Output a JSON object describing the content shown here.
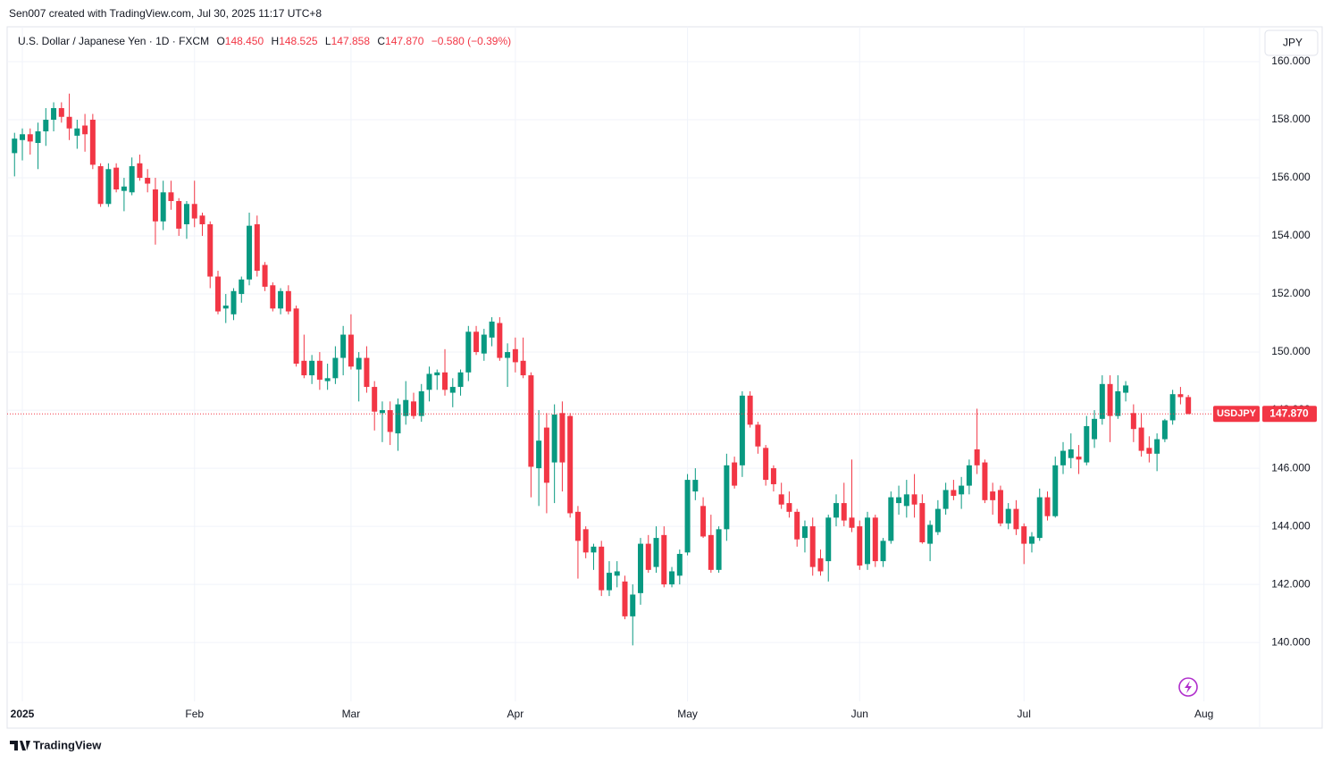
{
  "attribution": "Sen007 created with TradingView.com, Jul 30, 2025 11:17 UTC+8",
  "footer_brand": "TradingView",
  "chart_data": {
    "type": "candlestick",
    "title": "U.S. Dollar / Japanese Yen · 1D · FXCM",
    "ohlc_legend": [
      {
        "key": "O",
        "value": "148.450"
      },
      {
        "key": "H",
        "value": "148.525"
      },
      {
        "key": "L",
        "value": "147.858"
      },
      {
        "key": "C",
        "value": "147.870"
      }
    ],
    "change": "−0.580 (−0.39%)",
    "currency": "JPY",
    "symbol": "USDJPY",
    "last_price": {
      "value": 147.87,
      "label": "147.870"
    },
    "up_color": "#089981",
    "down_color": "#f23645",
    "grid": true,
    "xlim": [
      -1,
      159
    ],
    "xticks": [
      {
        "value": 1,
        "label": "2025"
      },
      {
        "value": 23,
        "label": "Feb"
      },
      {
        "value": 43,
        "label": "Mar"
      },
      {
        "value": 64,
        "label": "Apr"
      },
      {
        "value": 86,
        "label": "May"
      },
      {
        "value": 108,
        "label": "Jun"
      },
      {
        "value": 129,
        "label": "Jul"
      },
      {
        "value": 152,
        "label": "Aug"
      }
    ],
    "ylim": [
      137.05,
      161.2
    ],
    "yticks": [
      {
        "value": 140,
        "label": "140.000"
      },
      {
        "value": 142,
        "label": "142.000"
      },
      {
        "value": 144,
        "label": "144.000"
      },
      {
        "value": 146,
        "label": "146.000"
      },
      {
        "value": 148,
        "label": "148.000"
      },
      {
        "value": 150,
        "label": "150.000"
      },
      {
        "value": 152,
        "label": "152.000"
      },
      {
        "value": 154,
        "label": "154.000"
      },
      {
        "value": 156,
        "label": "156.000"
      },
      {
        "value": 158,
        "label": "158.000"
      },
      {
        "value": 160,
        "label": "160.000"
      }
    ],
    "open": [
      156.85,
      157.3,
      157.5,
      157.2,
      157.6,
      158.0,
      158.4,
      158.1,
      157.45,
      157.8,
      158.0,
      156.4,
      155.1,
      156.35,
      155.55,
      155.5,
      156.5,
      156.0,
      155.6,
      154.5,
      155.5,
      155.2,
      154.4,
      155.1,
      154.7,
      154.4,
      152.6,
      151.5,
      151.3,
      152.0,
      152.5,
      154.4,
      153.0,
      152.3,
      151.5,
      152.1,
      151.5,
      149.7,
      149.2,
      149.7,
      149.0,
      149.1,
      149.8,
      150.6,
      149.4,
      149.8,
      148.8,
      147.9,
      148.0,
      147.2,
      147.8,
      148.3,
      147.8,
      148.7,
      149.2,
      149.3,
      148.6,
      148.8,
      149.3,
      150.7,
      149.95,
      150.5,
      151.0,
      149.8,
      150.1,
      149.7,
      149.2,
      146.0,
      147.4,
      146.2,
      147.9,
      147.8,
      144.5,
      143.9,
      143.1,
      143.3,
      141.8,
      142.3,
      142.1,
      140.9,
      141.7,
      143.4,
      142.6,
      143.7,
      142.0,
      142.3,
      143.1,
      145.2,
      144.7,
      143.7,
      142.5,
      143.9,
      146.2,
      146.1,
      148.5,
      147.5,
      146.7,
      146.0,
      145.1,
      144.8,
      144.5,
      143.6,
      144.0,
      142.9,
      142.8,
      144.3,
      144.8,
      144.3,
      144.0,
      142.7,
      144.3,
      142.8,
      143.5,
      144.8,
      144.7,
      145.1,
      144.8,
      143.4,
      143.8,
      144.6,
      145.25,
      145.1,
      145.4,
      146.65,
      146.2,
      145.2,
      145.25,
      144.1,
      144.6,
      144.0,
      143.4,
      143.6,
      145.0,
      144.35,
      146.1,
      146.35,
      146.4,
      146.2,
      147.0,
      147.7,
      148.9,
      147.8,
      148.6,
      147.9,
      147.4,
      146.7,
      146.5,
      147.0,
      147.65,
      148.55,
      148.45
    ],
    "high": [
      157.55,
      157.7,
      157.7,
      157.9,
      158.4,
      158.6,
      158.6,
      158.9,
      158.0,
      158.2,
      158.2,
      156.5,
      156.5,
      156.5,
      156.0,
      156.7,
      156.8,
      156.3,
      156.0,
      155.9,
      155.9,
      155.3,
      155.2,
      155.9,
      154.8,
      154.5,
      152.8,
      152.0,
      152.2,
      152.6,
      154.8,
      154.7,
      153.1,
      152.4,
      152.2,
      152.3,
      151.6,
      150.6,
      149.9,
      150.0,
      149.6,
      150.2,
      150.9,
      151.3,
      150.0,
      150.2,
      149.0,
      148.3,
      148.3,
      148.4,
      149.0,
      148.6,
      148.9,
      149.5,
      149.4,
      150.1,
      149.1,
      149.4,
      150.9,
      150.9,
      150.8,
      151.2,
      151.2,
      150.3,
      150.5,
      150.5,
      149.3,
      148.0,
      147.9,
      148.2,
      148.3,
      147.9,
      144.7,
      144.0,
      143.4,
      143.5,
      142.8,
      142.8,
      142.3,
      142.0,
      143.6,
      143.7,
      144.0,
      144.0,
      142.6,
      143.2,
      145.8,
      146.0,
      145.0,
      144.4,
      144.0,
      146.5,
      146.4,
      148.65,
      148.65,
      147.6,
      146.8,
      146.1,
      145.5,
      145.2,
      144.6,
      144.2,
      144.3,
      143.2,
      144.4,
      145.1,
      145.5,
      146.3,
      144.2,
      144.5,
      144.4,
      143.6,
      145.2,
      145.4,
      145.6,
      145.8,
      145.1,
      144.2,
      144.9,
      145.5,
      145.6,
      145.7,
      146.3,
      148.05,
      146.3,
      145.5,
      145.4,
      144.8,
      144.9,
      144.1,
      143.8,
      145.3,
      145.2,
      146.4,
      146.9,
      147.2,
      146.8,
      147.8,
      148.0,
      149.2,
      149.2,
      149.2,
      149.0,
      148.2,
      147.9,
      147.1,
      147.2,
      147.7,
      148.7,
      148.8,
      148.525
    ],
    "low": [
      156.05,
      156.6,
      156.8,
      156.3,
      157.1,
      157.6,
      157.9,
      157.3,
      157.0,
      156.9,
      156.3,
      155.0,
      155.0,
      155.5,
      154.85,
      155.4,
      155.9,
      155.5,
      153.7,
      154.2,
      154.9,
      154.0,
      153.9,
      154.3,
      154.0,
      152.2,
      151.3,
      151.0,
      151.1,
      151.7,
      152.3,
      152.6,
      152.1,
      151.4,
      151.3,
      151.3,
      149.5,
      149.1,
      148.9,
      148.7,
      148.7,
      148.9,
      149.2,
      149.4,
      148.3,
      148.6,
      147.3,
      146.9,
      146.8,
      146.6,
      147.5,
      147.7,
      147.6,
      148.3,
      148.7,
      148.5,
      148.1,
      148.5,
      149.0,
      149.9,
      149.7,
      150.2,
      149.7,
      148.8,
      149.3,
      149.1,
      145.0,
      144.7,
      144.45,
      144.8,
      145.2,
      144.3,
      142.2,
      142.9,
      142.5,
      141.6,
      141.6,
      141.9,
      140.8,
      139.9,
      141.3,
      142.4,
      142.4,
      141.9,
      141.9,
      142.0,
      143.0,
      144.9,
      143.6,
      142.4,
      142.4,
      143.5,
      145.3,
      145.7,
      147.4,
      146.5,
      145.4,
      145.2,
      144.6,
      144.3,
      143.3,
      143.1,
      142.3,
      142.3,
      142.1,
      144.0,
      144.0,
      143.8,
      142.5,
      142.5,
      142.6,
      142.6,
      143.4,
      144.4,
      144.3,
      144.3,
      143.4,
      142.8,
      143.7,
      144.4,
      144.9,
      144.6,
      145.1,
      145.8,
      144.8,
      144.4,
      144.0,
      143.9,
      143.7,
      142.7,
      143.1,
      143.5,
      144.2,
      144.3,
      145.8,
      146.0,
      145.8,
      146.1,
      146.7,
      147.5,
      146.9,
      147.7,
      148.3,
      146.9,
      146.4,
      146.2,
      145.9,
      146.9,
      147.5,
      148.2,
      147.858
    ],
    "close": [
      157.35,
      157.5,
      157.25,
      157.6,
      158.0,
      158.4,
      158.1,
      157.7,
      157.7,
      157.5,
      156.45,
      155.1,
      156.3,
      155.6,
      155.7,
      156.4,
      156.0,
      155.8,
      154.5,
      155.5,
      155.2,
      154.25,
      155.1,
      154.6,
      154.4,
      152.6,
      151.4,
      151.6,
      152.1,
      152.5,
      154.35,
      152.8,
      152.25,
      151.5,
      152.1,
      151.4,
      149.6,
      149.2,
      149.7,
      149.05,
      149.1,
      149.8,
      150.6,
      149.5,
      149.8,
      148.8,
      147.95,
      148.0,
      147.25,
      148.2,
      148.35,
      147.8,
      148.65,
      149.25,
      149.3,
      148.7,
      148.8,
      149.3,
      150.7,
      150.0,
      150.6,
      151.05,
      149.8,
      150.0,
      149.65,
      149.2,
      146.05,
      146.95,
      145.5,
      147.85,
      146.2,
      144.45,
      143.5,
      143.1,
      143.3,
      141.8,
      142.4,
      142.45,
      140.9,
      141.65,
      143.4,
      142.5,
      143.6,
      142.0,
      142.45,
      143.05,
      145.6,
      145.6,
      143.65,
      142.5,
      143.9,
      146.1,
      145.4,
      148.5,
      147.5,
      146.75,
      145.6,
      145.45,
      144.75,
      144.5,
      143.55,
      144.0,
      142.6,
      142.45,
      144.3,
      144.8,
      144.2,
      143.95,
      142.65,
      144.3,
      142.8,
      143.5,
      145.0,
      145.0,
      145.1,
      144.75,
      143.45,
      144.05,
      144.6,
      145.25,
      145.05,
      145.4,
      146.1,
      146.1,
      144.9,
      144.9,
      144.1,
      144.6,
      143.9,
      143.4,
      143.65,
      145.0,
      144.35,
      146.1,
      146.6,
      146.65,
      146.3,
      147.45,
      147.7,
      148.9,
      147.8,
      148.65,
      148.85,
      147.35,
      146.6,
      146.5,
      147.0,
      147.65,
      148.55,
      148.45,
      147.87
    ]
  }
}
